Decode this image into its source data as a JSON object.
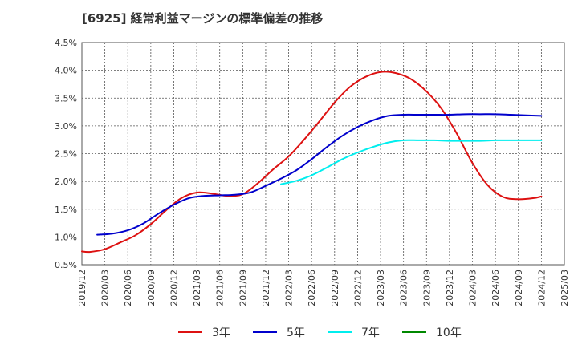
{
  "title": "[6925]  経常利益マージンの標準偏差の推移",
  "chart_data": {
    "type": "line",
    "title": "[6925]  経常利益マージンの標準偏差の推移",
    "xlabel": "",
    "ylabel": "",
    "grid": true,
    "legend_position": "bottom",
    "ylim": [
      0.5,
      4.5
    ],
    "y_ticks": [
      "0.5%",
      "1.0%",
      "1.5%",
      "2.0%",
      "2.5%",
      "3.0%",
      "3.5%",
      "4.0%",
      "4.5%"
    ],
    "x_ticks": [
      "2019/12",
      "2020/03",
      "2020/06",
      "2020/09",
      "2020/12",
      "2021/03",
      "2021/06",
      "2021/09",
      "2021/12",
      "2022/03",
      "2022/06",
      "2022/09",
      "2022/12",
      "2023/03",
      "2023/06",
      "2023/09",
      "2023/12",
      "2024/03",
      "2024/06",
      "2024/09",
      "2024/12",
      "2025/03"
    ],
    "series": [
      {
        "name": "3年",
        "color": "#dd1111",
        "x": [
          "2019/12",
          "2020/01",
          "2020/03",
          "2020/05",
          "2020/07",
          "2020/09",
          "2020/11",
          "2021/01",
          "2021/03",
          "2021/05",
          "2021/07",
          "2021/09",
          "2021/11",
          "2022/01",
          "2022/03",
          "2022/05",
          "2022/07",
          "2022/09",
          "2022/11",
          "2023/01",
          "2023/03",
          "2023/05",
          "2023/07",
          "2023/09",
          "2023/11",
          "2024/01",
          "2024/03",
          "2024/05",
          "2024/07",
          "2024/09",
          "2024/11",
          "2024/12"
        ],
        "values": [
          0.74,
          0.73,
          0.78,
          0.9,
          1.03,
          1.23,
          1.48,
          1.7,
          1.8,
          1.78,
          1.74,
          1.77,
          1.97,
          2.22,
          2.45,
          2.75,
          3.08,
          3.42,
          3.7,
          3.88,
          3.97,
          3.95,
          3.84,
          3.62,
          3.3,
          2.85,
          2.33,
          1.93,
          1.72,
          1.68,
          1.7,
          1.73
        ]
      },
      {
        "name": "5年",
        "color": "#0000cc",
        "x": [
          "2020/02",
          "2020/04",
          "2020/06",
          "2020/08",
          "2020/10",
          "2020/12",
          "2021/02",
          "2021/04",
          "2021/06",
          "2021/08",
          "2021/10",
          "2021/12",
          "2022/02",
          "2022/04",
          "2022/06",
          "2022/08",
          "2022/10",
          "2022/12",
          "2023/02",
          "2023/04",
          "2023/06",
          "2023/08",
          "2023/10",
          "2023/12",
          "2024/02",
          "2024/04",
          "2024/06",
          "2024/08",
          "2024/10",
          "2024/12"
        ],
        "values": [
          1.04,
          1.06,
          1.12,
          1.24,
          1.42,
          1.58,
          1.7,
          1.74,
          1.75,
          1.76,
          1.8,
          1.92,
          2.05,
          2.2,
          2.4,
          2.62,
          2.82,
          2.98,
          3.1,
          3.18,
          3.2,
          3.2,
          3.2,
          3.2,
          3.21,
          3.21,
          3.21,
          3.2,
          3.19,
          3.18
        ]
      },
      {
        "name": "7年",
        "color": "#00eeee",
        "x": [
          "2022/02",
          "2022/04",
          "2022/06",
          "2022/08",
          "2022/10",
          "2022/12",
          "2023/02",
          "2023/04",
          "2023/06",
          "2023/08",
          "2023/10",
          "2023/12",
          "2024/02",
          "2024/04",
          "2024/06",
          "2024/08",
          "2024/10",
          "2024/12"
        ],
        "values": [
          1.95,
          2.01,
          2.11,
          2.25,
          2.4,
          2.52,
          2.62,
          2.7,
          2.74,
          2.74,
          2.74,
          2.73,
          2.73,
          2.73,
          2.74,
          2.74,
          2.74,
          2.74
        ]
      },
      {
        "name": "10年",
        "color": "#008800",
        "x": [],
        "values": []
      }
    ]
  }
}
